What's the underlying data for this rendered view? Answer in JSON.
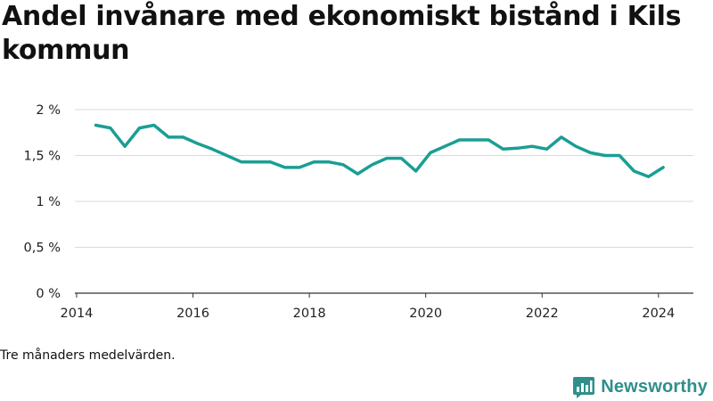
{
  "title": "Andel invånare med ekonomiskt bistånd i Kils kommun",
  "note": "Tre månaders medelvärden.",
  "brand": {
    "name": "Newsworthy",
    "icon": "bar-chart-speech-icon",
    "color": "#2f8f8a"
  },
  "chart_data": {
    "type": "line",
    "title": "Andel invånare med ekonomiskt bistånd i Kils kommun",
    "xlabel": "",
    "ylabel": "",
    "xlim": [
      2013.97,
      2024.6
    ],
    "ylim": [
      0,
      2
    ],
    "x_ticks": [
      2014,
      2016,
      2018,
      2020,
      2022,
      2024
    ],
    "x_tick_labels": [
      "2014",
      "2016",
      "2018",
      "2020",
      "2022",
      "2024"
    ],
    "y_ticks": [
      0,
      0.5,
      1,
      1.5,
      2
    ],
    "y_tick_labels": [
      "0 %",
      "0,5 %",
      "1 %",
      "1,5 %",
      "2 %"
    ],
    "grid": "horizontal",
    "line_color": "#1a9e94",
    "series": [
      {
        "name": "",
        "x": [
          2014.33,
          2014.58,
          2014.83,
          2015.08,
          2015.33,
          2015.58,
          2015.83,
          2016.08,
          2016.33,
          2016.58,
          2016.83,
          2017.08,
          2017.33,
          2017.58,
          2017.83,
          2018.08,
          2018.33,
          2018.58,
          2018.83,
          2019.08,
          2019.33,
          2019.58,
          2019.83,
          2020.08,
          2020.33,
          2020.58,
          2020.83,
          2021.08,
          2021.33,
          2021.58,
          2021.83,
          2022.08,
          2022.33,
          2022.58,
          2022.83,
          2023.08,
          2023.33,
          2023.58,
          2023.83,
          2024.08
        ],
        "values": [
          1.83,
          1.8,
          1.6,
          1.8,
          1.83,
          1.7,
          1.7,
          1.63,
          1.57,
          1.5,
          1.43,
          1.43,
          1.43,
          1.37,
          1.37,
          1.43,
          1.43,
          1.4,
          1.3,
          1.4,
          1.47,
          1.47,
          1.33,
          1.53,
          1.6,
          1.67,
          1.67,
          1.67,
          1.57,
          1.58,
          1.6,
          1.57,
          1.7,
          1.6,
          1.53,
          1.5,
          1.5,
          1.33,
          1.27,
          1.37
        ]
      }
    ]
  }
}
